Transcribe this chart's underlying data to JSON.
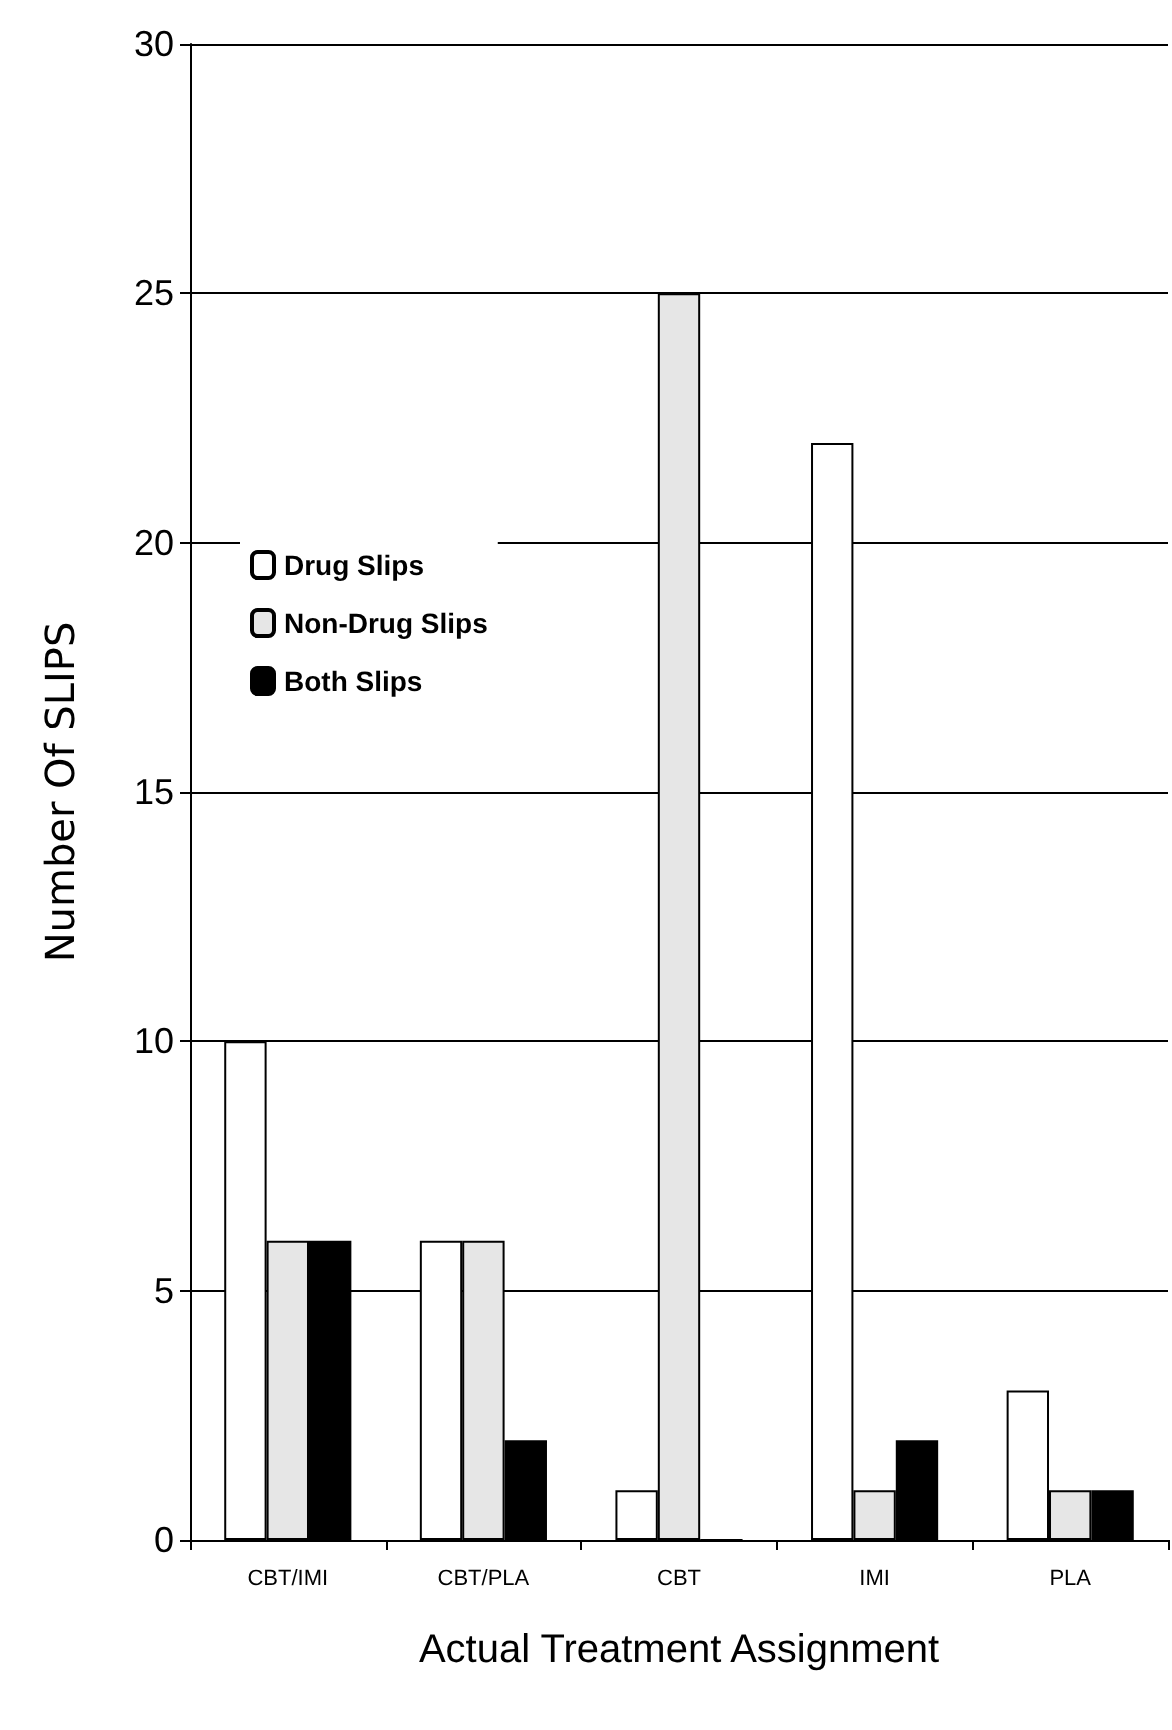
{
  "chart_data": {
    "type": "bar",
    "xlabel": "Actual Treatment Assignment",
    "ylabel": "Number Of SLIPS",
    "categories": [
      "CBT/IMI",
      "CBT/PLA",
      "CBT",
      "IMI",
      "PLA"
    ],
    "series": [
      {
        "name": "Drug Slips",
        "color": "#ffffff",
        "values": [
          10,
          6,
          1,
          22,
          3
        ]
      },
      {
        "name": "Non-Drug Slips",
        "color": "#e6e6e6",
        "values": [
          6,
          6,
          25,
          1,
          1
        ]
      },
      {
        "name": "Both Slips",
        "color": "#000000",
        "values": [
          6,
          2,
          0,
          2,
          1
        ]
      }
    ],
    "ylim": [
      0,
      30
    ],
    "yticks": [
      0,
      5,
      10,
      15,
      20,
      25,
      30
    ],
    "grid": "y",
    "legend": "left"
  }
}
